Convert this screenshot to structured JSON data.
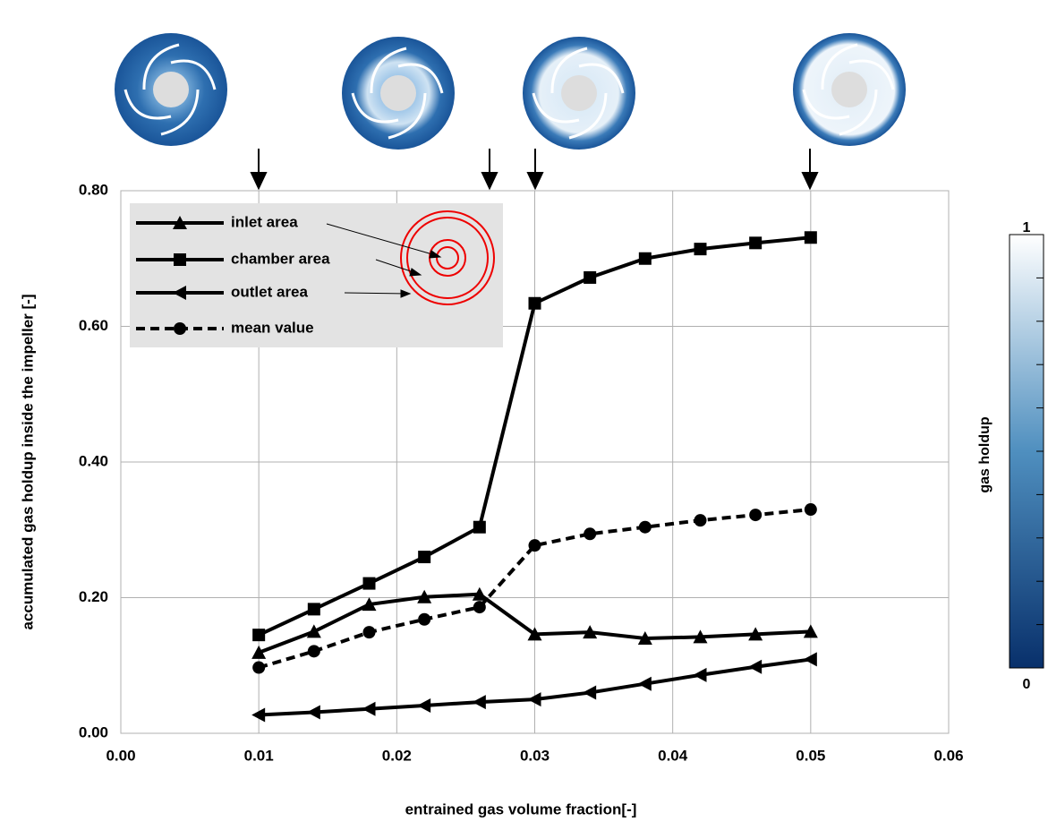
{
  "chart_data": {
    "type": "line",
    "x_label": "entrained gas volume fraction[-]",
    "y_label": "accumulated gas holdup inside the impeller [-]",
    "x": [
      0.01,
      0.014,
      0.018,
      0.022,
      0.026,
      0.03,
      0.034,
      0.038,
      0.042,
      0.046,
      0.05
    ],
    "series": [
      {
        "name": "inlet area",
        "color": "#000000",
        "marker": "triangle",
        "dash": false,
        "values": [
          0.119,
          0.15,
          0.19,
          0.201,
          0.205,
          0.146,
          0.149,
          0.14,
          0.142,
          0.146,
          0.15
        ]
      },
      {
        "name": "chamber area",
        "color": "#000000",
        "marker": "square",
        "dash": false,
        "values": [
          0.145,
          0.183,
          0.221,
          0.26,
          0.304,
          0.634,
          0.672,
          0.7,
          0.714,
          0.723,
          0.731
        ]
      },
      {
        "name": "outlet area",
        "color": "#000000",
        "marker": "left-triangle",
        "dash": false,
        "values": [
          0.027,
          0.031,
          0.036,
          0.041,
          0.046,
          0.05,
          0.06,
          0.073,
          0.086,
          0.098,
          0.109
        ]
      },
      {
        "name": "mean value",
        "color": "#000000",
        "marker": "circle",
        "dash": true,
        "values": [
          0.097,
          0.121,
          0.149,
          0.168,
          0.186,
          0.277,
          0.294,
          0.304,
          0.314,
          0.322,
          0.33
        ]
      }
    ],
    "xlim": [
      0,
      0.06
    ],
    "ylim": [
      0,
      0.8
    ],
    "xticks": [
      {
        "value": 0,
        "label": "0.00"
      },
      {
        "value": 0.01,
        "label": "0.01"
      },
      {
        "value": 0.02,
        "label": "0.02"
      },
      {
        "value": 0.03,
        "label": "0.03"
      },
      {
        "value": 0.04,
        "label": "0.04"
      },
      {
        "value": 0.05,
        "label": "0.05"
      },
      {
        "value": 0.06,
        "label": "0.06"
      }
    ],
    "yticks": [
      {
        "value": 0,
        "label": "0.00"
      },
      {
        "value": 0.2,
        "label": "0.20"
      },
      {
        "value": 0.4,
        "label": "0.40"
      },
      {
        "value": 0.6,
        "label": "0.60"
      },
      {
        "value": 0.8,
        "label": "0.80"
      }
    ],
    "grid": true,
    "legend": "upper left",
    "colorbar": {
      "label": "gas holdup",
      "max_label": "1",
      "min_label": "0"
    }
  }
}
